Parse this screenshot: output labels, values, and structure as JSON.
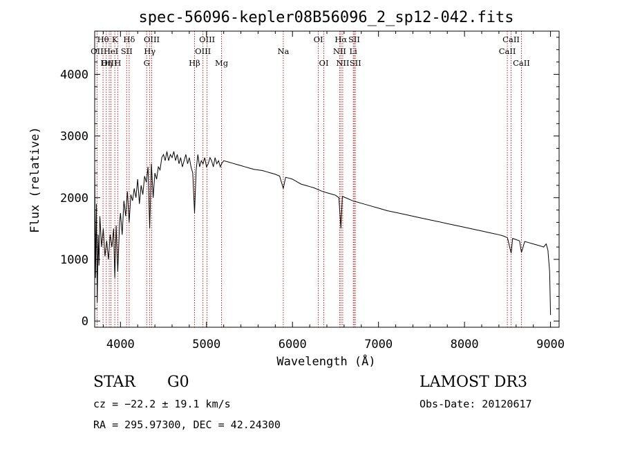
{
  "chart_data": {
    "type": "line",
    "title": "spec-56096-kepler08B56096_2_sp12-042.fits",
    "xlabel": "Wavelength (Å)",
    "ylabel": "Flux (relative)",
    "xlim": [
      3700,
      9100
    ],
    "ylim": [
      -100,
      4700
    ],
    "xticks": [
      4000,
      5000,
      6000,
      7000,
      8000,
      9000
    ],
    "yticks": [
      0,
      1000,
      2000,
      3000,
      4000
    ],
    "series": [
      {
        "name": "spectrum",
        "x": [
          3700,
          3710,
          3720,
          3730,
          3740,
          3750,
          3760,
          3780,
          3800,
          3820,
          3840,
          3860,
          3880,
          3900,
          3920,
          3934,
          3950,
          3968,
          3990,
          4000,
          4020,
          4040,
          4060,
          4080,
          4101,
          4120,
          4140,
          4160,
          4180,
          4200,
          4220,
          4240,
          4260,
          4280,
          4300,
          4320,
          4340,
          4360,
          4380,
          4400,
          4420,
          4440,
          4460,
          4480,
          4500,
          4520,
          4540,
          4560,
          4580,
          4600,
          4620,
          4640,
          4660,
          4680,
          4700,
          4720,
          4740,
          4760,
          4780,
          4800,
          4820,
          4840,
          4861,
          4880,
          4900,
          4920,
          4940,
          4960,
          4980,
          5000,
          5020,
          5040,
          5060,
          5080,
          5100,
          5120,
          5140,
          5160,
          5175,
          5200,
          5250,
          5300,
          5350,
          5400,
          5450,
          5500,
          5550,
          5600,
          5650,
          5700,
          5750,
          5800,
          5850,
          5893,
          5920,
          5950,
          6000,
          6050,
          6100,
          6150,
          6200,
          6250,
          6300,
          6350,
          6400,
          6450,
          6500,
          6540,
          6563,
          6580,
          6600,
          6650,
          6700,
          6750,
          6800,
          6900,
          7000,
          7100,
          7200,
          7300,
          7400,
          7500,
          7600,
          7700,
          7800,
          7900,
          8000,
          8100,
          8200,
          8300,
          8400,
          8450,
          8500,
          8542,
          8560,
          8600,
          8640,
          8662,
          8700,
          8750,
          8800,
          8850,
          8900,
          8920,
          8950,
          8970,
          8990,
          9000
        ],
        "values": [
          2550,
          700,
          1900,
          300,
          1400,
          900,
          1700,
          1200,
          1500,
          1050,
          1300,
          1000,
          1400,
          1200,
          1500,
          700,
          1550,
          800,
          1600,
          1750,
          1400,
          1950,
          1700,
          2100,
          1600,
          2050,
          1950,
          2150,
          2000,
          2300,
          1900,
          2200,
          2050,
          2350,
          2250,
          2500,
          1500,
          2550,
          2000,
          2400,
          2300,
          2500,
          2450,
          2650,
          2700,
          2600,
          2750,
          2600,
          2700,
          2650,
          2750,
          2600,
          2700,
          2550,
          2650,
          2500,
          2600,
          2700,
          2550,
          2650,
          2500,
          2400,
          1750,
          2450,
          2700,
          2500,
          2600,
          2550,
          2650,
          2500,
          2550,
          2650,
          2600,
          2500,
          2650,
          2550,
          2600,
          2500,
          2550,
          2600,
          2580,
          2560,
          2540,
          2520,
          2500,
          2480,
          2460,
          2450,
          2440,
          2420,
          2400,
          2380,
          2350,
          2150,
          2330,
          2320,
          2300,
          2260,
          2220,
          2200,
          2180,
          2160,
          2130,
          2100,
          2080,
          2060,
          2040,
          2000,
          1500,
          2020,
          2010,
          1980,
          1950,
          1930,
          1910,
          1870,
          1830,
          1790,
          1760,
          1730,
          1700,
          1670,
          1640,
          1610,
          1580,
          1550,
          1520,
          1490,
          1460,
          1430,
          1400,
          1380,
          1350,
          1100,
          1340,
          1320,
          1300,
          1110,
          1290,
          1270,
          1250,
          1230,
          1210,
          1200,
          1250,
          1150,
          800,
          100
        ]
      }
    ],
    "lines": [
      {
        "x": 3727,
        "label": "OII",
        "row": 1
      },
      {
        "x": 3797,
        "label": "Hθ",
        "row": 0
      },
      {
        "x": 3835,
        "label": "Hη",
        "row": 2
      },
      {
        "x": 3869,
        "label": "OIII",
        "row": 2
      },
      {
        "x": 3889,
        "label": "HeI",
        "row": 1
      },
      {
        "x": 3934,
        "label": "K",
        "row": 0
      },
      {
        "x": 3968,
        "label": "H",
        "row": 2
      },
      {
        "x": 4072,
        "label": "SII",
        "row": 1
      },
      {
        "x": 4101,
        "label": "Hδ",
        "row": 0
      },
      {
        "x": 4304,
        "label": "G",
        "row": 2
      },
      {
        "x": 4340,
        "label": "Hγ",
        "row": 1
      },
      {
        "x": 4363,
        "label": "OIII",
        "row": 0
      },
      {
        "x": 4861,
        "label": "Hβ",
        "row": 2
      },
      {
        "x": 4959,
        "label": "OIII",
        "row": 1
      },
      {
        "x": 5007,
        "label": "OIII",
        "row": 0
      },
      {
        "x": 5175,
        "label": "Mg",
        "row": 2
      },
      {
        "x": 5893,
        "label": "Na",
        "row": 1
      },
      {
        "x": 6300,
        "label": "OI",
        "row": 0
      },
      {
        "x": 6364,
        "label": "OI",
        "row": 2
      },
      {
        "x": 6548,
        "label": "NII",
        "row": 1
      },
      {
        "x": 6563,
        "label": "Hα",
        "row": 0
      },
      {
        "x": 6584,
        "label": "NII",
        "row": 2
      },
      {
        "x": 6707,
        "label": "Li",
        "row": 1
      },
      {
        "x": 6717,
        "label": "SII",
        "row": 0
      },
      {
        "x": 6731,
        "label": "SII",
        "row": 2
      },
      {
        "x": 8498,
        "label": "CaII",
        "row": 1
      },
      {
        "x": 8542,
        "label": "CaII",
        "row": 0
      },
      {
        "x": 8662,
        "label": "CaII",
        "row": 2
      }
    ]
  },
  "info": {
    "class_label": "STAR",
    "subclass": "G0",
    "survey": "LAMOST DR3",
    "cz": "cz = −22.2 ± 19.1 km/s",
    "obs_date": "Obs-Date: 20120617",
    "coords": "RA = 295.97300, DEC =  42.24300"
  }
}
